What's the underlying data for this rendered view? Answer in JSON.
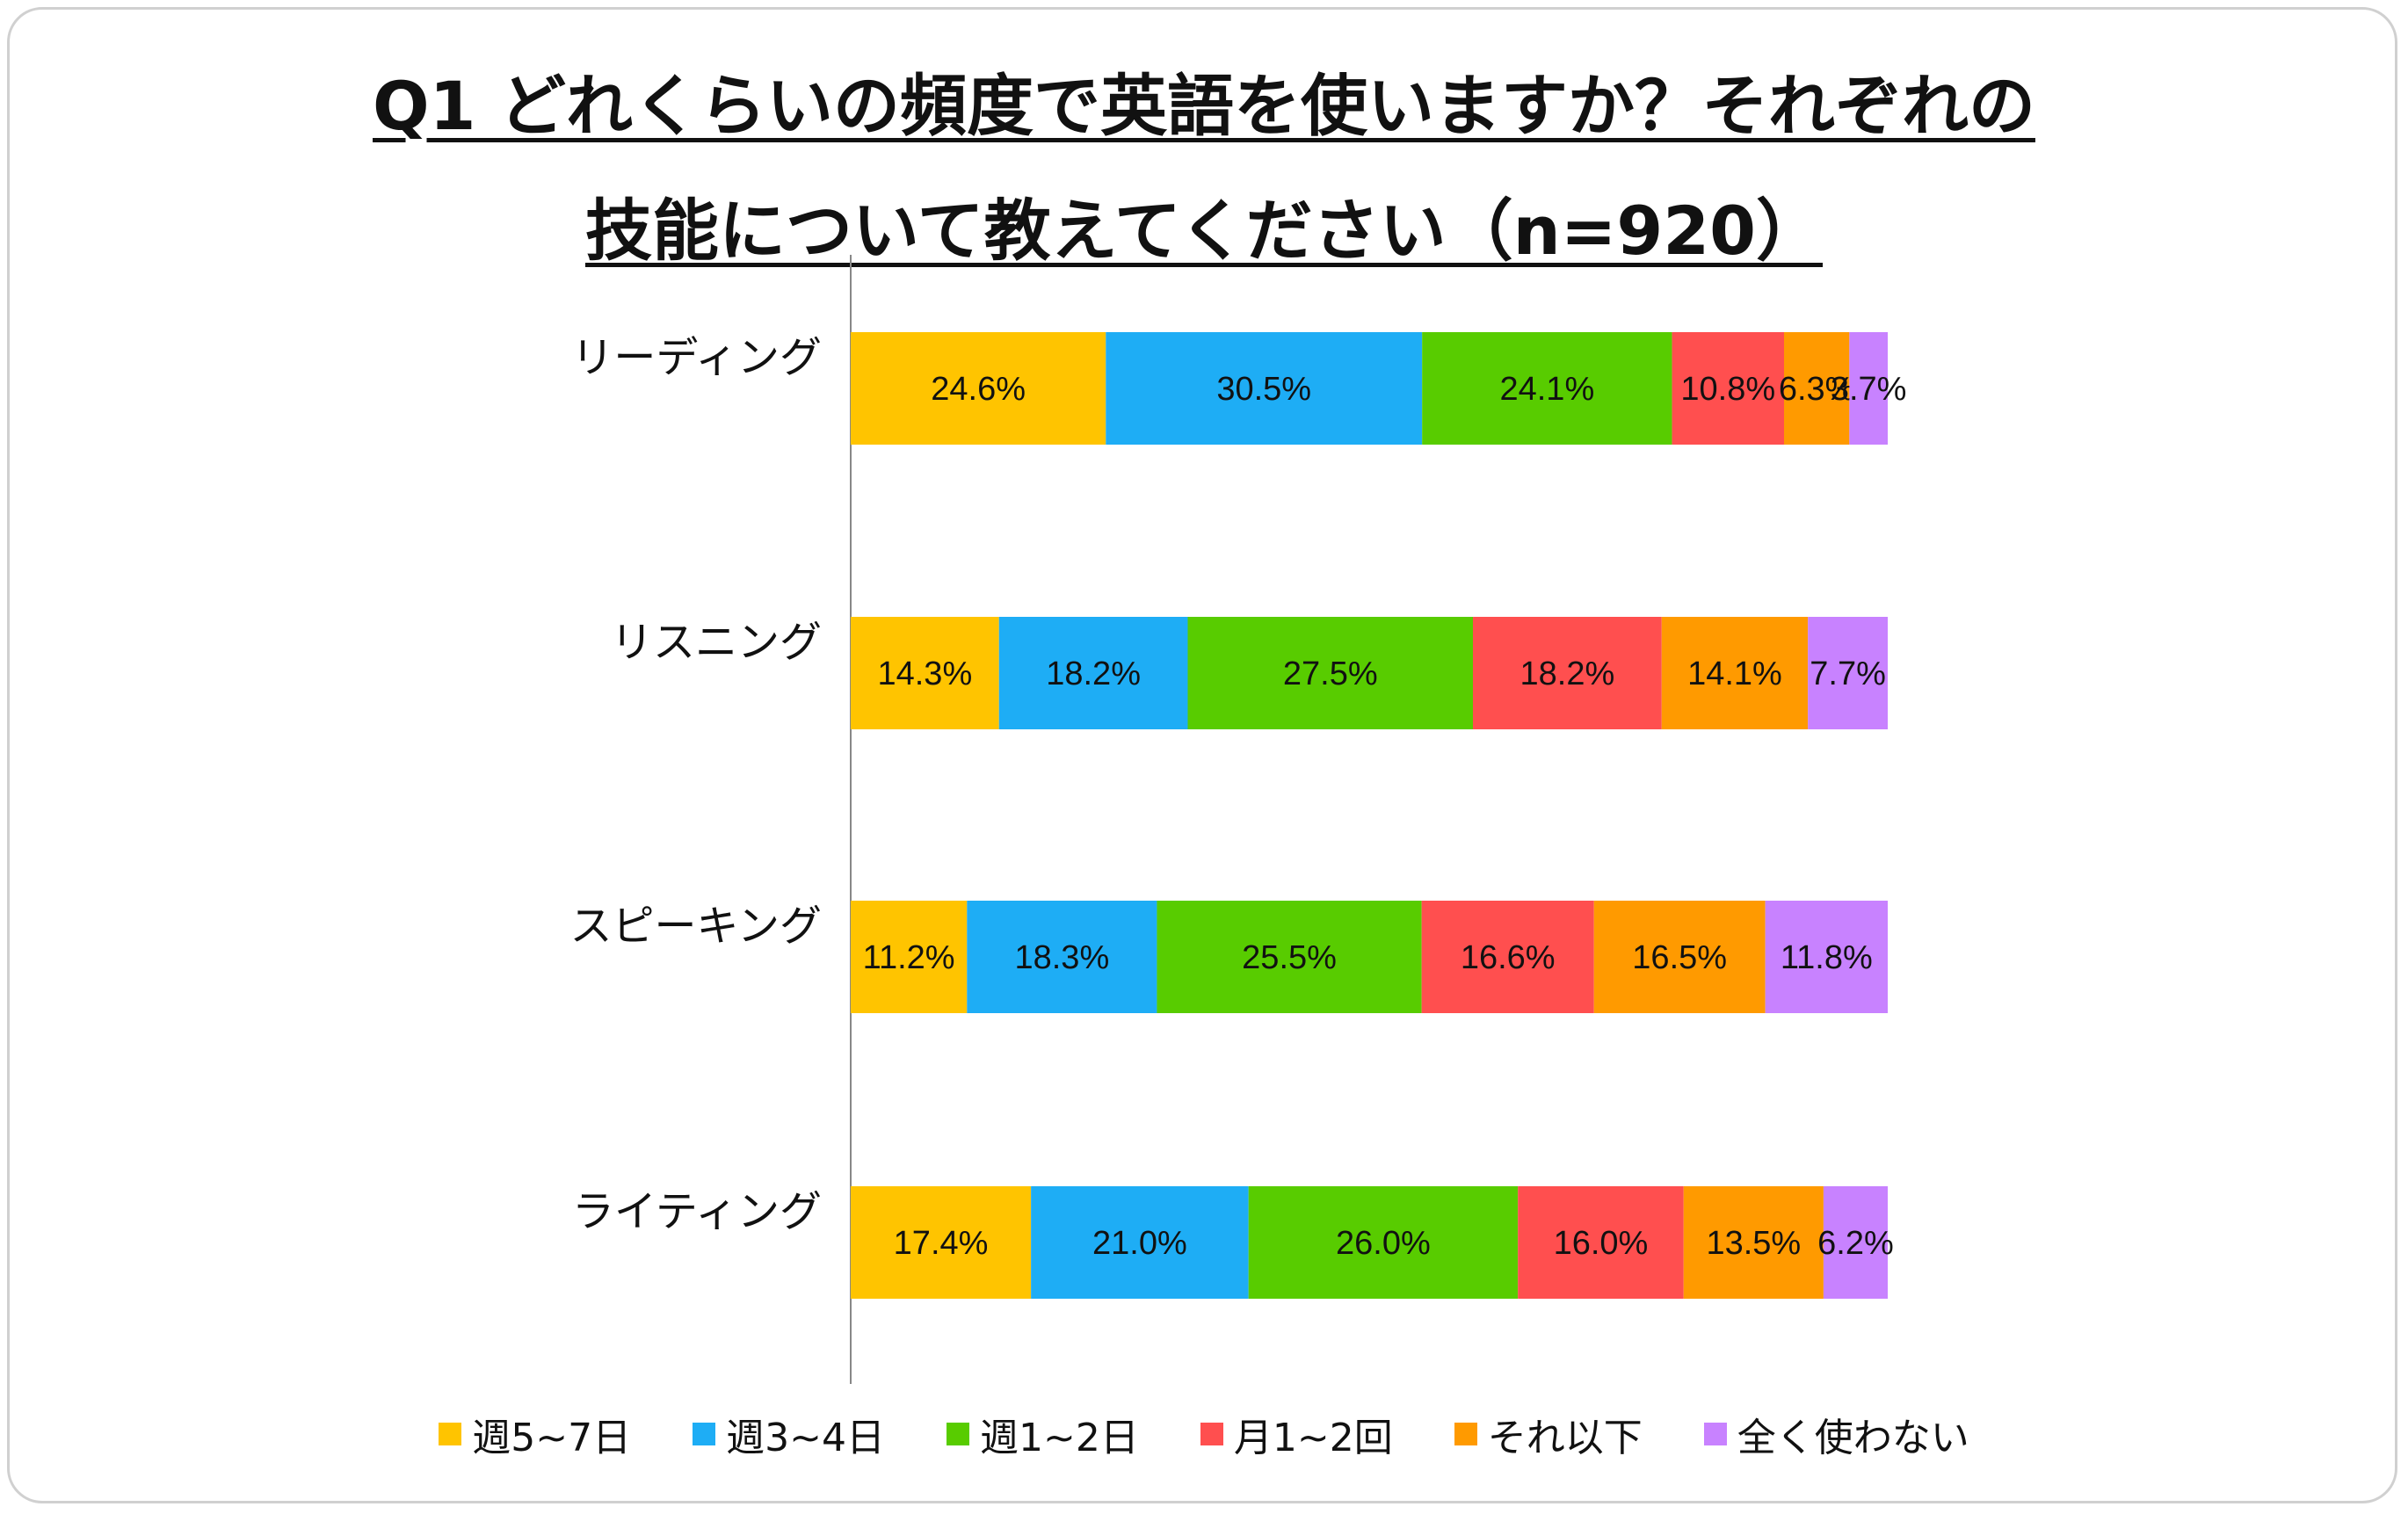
{
  "title_line1": "Q1 どれくらいの頻度で英語を使いますか？それぞれの",
  "title_line2": "技能について教えてください（n=920）",
  "chart_data": {
    "type": "bar",
    "orientation": "horizontal-stacked-100",
    "categories": [
      "リーディング",
      "リスニング",
      "スピーキング",
      "ライティング"
    ],
    "series": [
      {
        "name": "週5~7日",
        "color": "#FFC400",
        "values": [
          24.6,
          14.3,
          11.2,
          17.4
        ]
      },
      {
        "name": "週3~4日",
        "color": "#1EADF5",
        "values": [
          30.5,
          18.2,
          18.3,
          21.0
        ]
      },
      {
        "name": "週1~2日",
        "color": "#58CC00",
        "values": [
          24.1,
          27.5,
          25.5,
          26.0
        ]
      },
      {
        "name": "月1~2回",
        "color": "#FF4F4F",
        "values": [
          10.8,
          18.2,
          16.6,
          16.0
        ]
      },
      {
        "name": "それ以下",
        "color": "#FF9A00",
        "values": [
          6.3,
          14.1,
          16.5,
          13.5
        ]
      },
      {
        "name": "全く使わない",
        "color": "#C882FF",
        "values": [
          3.7,
          7.7,
          11.8,
          6.2
        ]
      }
    ],
    "value_labels": [
      [
        "24.6%",
        "30.5%",
        "24.1%",
        "10.8%",
        "6.3%",
        "3.7%"
      ],
      [
        "14.3%",
        "18.2%",
        "27.5%",
        "18.2%",
        "14.1%",
        "7.7%"
      ],
      [
        "11.2%",
        "18.3%",
        "25.5%",
        "16.6%",
        "16.5%",
        "11.8%"
      ],
      [
        "17.4%",
        "21.0%",
        "26.0%",
        "16.0%",
        "13.5%",
        "6.2%"
      ]
    ],
    "xlim": [
      0,
      100
    ],
    "legend_position": "bottom",
    "grid": false
  }
}
